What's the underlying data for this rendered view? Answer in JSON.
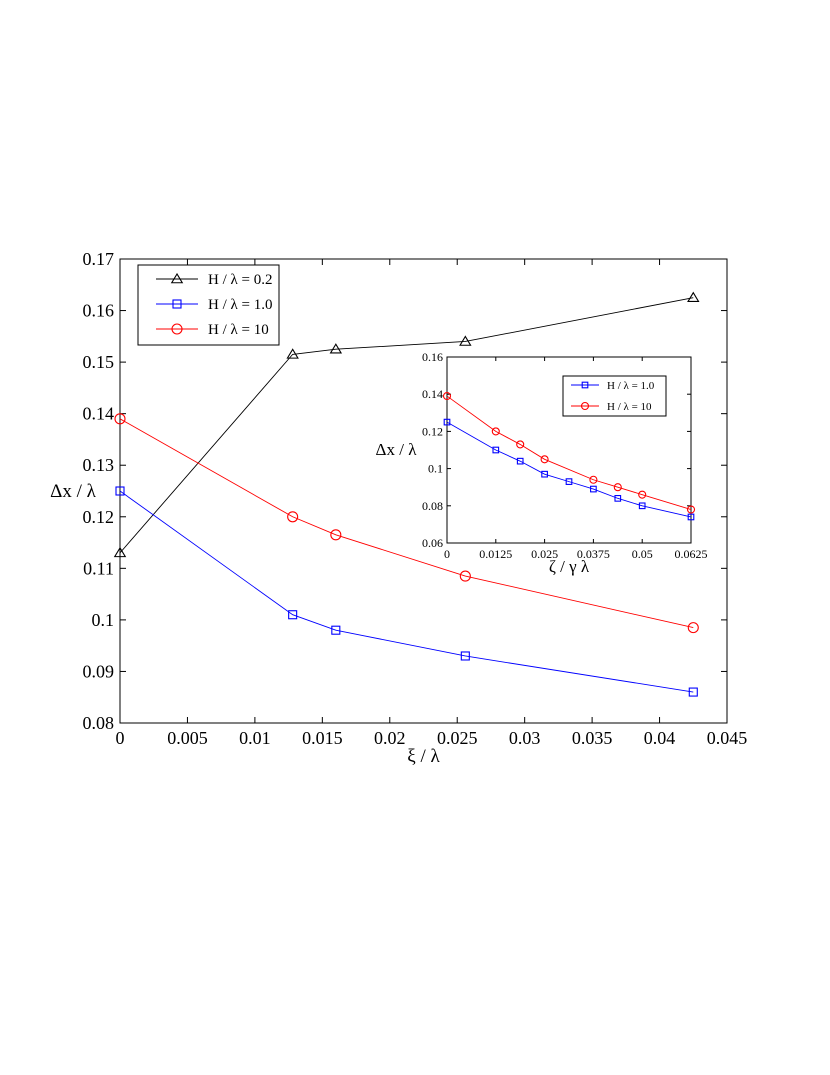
{
  "chart_data": [
    {
      "type": "line",
      "xlabel": "ξ / λ",
      "ylabel": "Δx / λ",
      "xlim": [
        0,
        0.045
      ],
      "ylim": [
        0.08,
        0.17
      ],
      "xticks": [
        "0",
        "0.005",
        "0.01",
        "0.015",
        "0.02",
        "0.025",
        "0.03",
        "0.035",
        "0.04",
        "0.045"
      ],
      "yticks": [
        "0.08",
        "0.09",
        "0.1",
        "0.11",
        "0.12",
        "0.13",
        "0.14",
        "0.15",
        "0.16",
        "0.17"
      ],
      "grid": false,
      "legend": "top-left",
      "series": [
        {
          "name": "H / λ = 0.2",
          "color": "#000000",
          "marker": "triangle",
          "x": [
            0,
            0.0128,
            0.016,
            0.0256,
            0.0425
          ],
          "y": [
            0.113,
            0.1515,
            0.1525,
            0.154,
            0.1625
          ]
        },
        {
          "name": "H / λ = 1.0",
          "color": "#0000ff",
          "marker": "square",
          "x": [
            0,
            0.0128,
            0.016,
            0.0256,
            0.0425
          ],
          "y": [
            0.125,
            0.101,
            0.098,
            0.093,
            0.086
          ]
        },
        {
          "name": "H / λ = 10",
          "color": "#ff0000",
          "marker": "circle",
          "x": [
            0,
            0.0128,
            0.016,
            0.0256,
            0.0425
          ],
          "y": [
            0.139,
            0.12,
            0.1165,
            0.1085,
            0.0985
          ]
        }
      ]
    },
    {
      "type": "line",
      "xlabel": "ζ / γ λ",
      "ylabel": "Δx / λ",
      "xlim": [
        0,
        0.0625
      ],
      "ylim": [
        0.06,
        0.16
      ],
      "xticks": [
        "0",
        "0.0125",
        "0.025",
        "0.0375",
        "0.05",
        "0.0625"
      ],
      "yticks": [
        "0.06",
        "0.08",
        "0.1",
        "0.12",
        "0.14",
        "0.16"
      ],
      "grid": false,
      "legend": "top-right",
      "series": [
        {
          "name": "H / λ = 1.0",
          "color": "#0000ff",
          "marker": "square",
          "x": [
            0,
            0.0125,
            0.01875,
            0.025,
            0.03125,
            0.0375,
            0.04375,
            0.05,
            0.0625
          ],
          "y": [
            0.125,
            0.11,
            0.104,
            0.097,
            0.093,
            0.089,
            0.084,
            0.08,
            0.074
          ]
        },
        {
          "name": "H / λ = 10",
          "color": "#ff0000",
          "marker": "circle",
          "x": [
            0,
            0.0125,
            0.01875,
            0.025,
            0.0375,
            0.04375,
            0.05,
            0.0625
          ],
          "y": [
            0.139,
            0.12,
            0.113,
            0.105,
            0.094,
            0.09,
            0.086,
            0.078
          ]
        }
      ]
    }
  ]
}
